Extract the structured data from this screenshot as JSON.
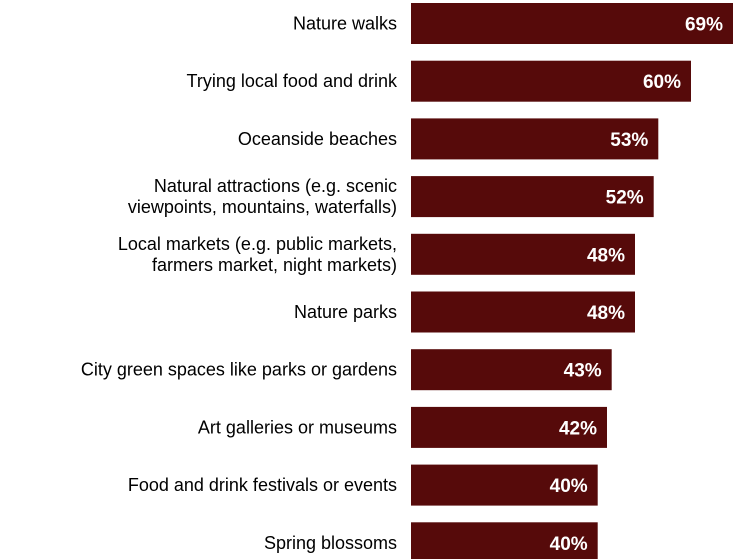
{
  "chart_data": {
    "type": "bar",
    "orientation": "horizontal",
    "categories": [
      [
        "Nature walks"
      ],
      [
        "Trying local food and drink"
      ],
      [
        "Oceanside beaches"
      ],
      [
        "Natural attractions (e.g. scenic",
        "viewpoints, mountains, waterfalls)"
      ],
      [
        "Local markets (e.g. public markets,",
        "farmers market, night markets)"
      ],
      [
        "Nature parks"
      ],
      [
        "City green spaces like parks or gardens"
      ],
      [
        "Art galleries or museums"
      ],
      [
        "Food and drink festivals or events"
      ],
      [
        "Spring blossoms"
      ]
    ],
    "values": [
      69,
      60,
      53,
      52,
      48,
      48,
      43,
      42,
      40,
      40
    ],
    "value_labels": [
      "69%",
      "60%",
      "53%",
      "52%",
      "48%",
      "48%",
      "43%",
      "42%",
      "40%",
      "40%"
    ],
    "bar_color": "#560a0a",
    "xlim": [
      0,
      69
    ],
    "grid": false,
    "legend": "none"
  }
}
